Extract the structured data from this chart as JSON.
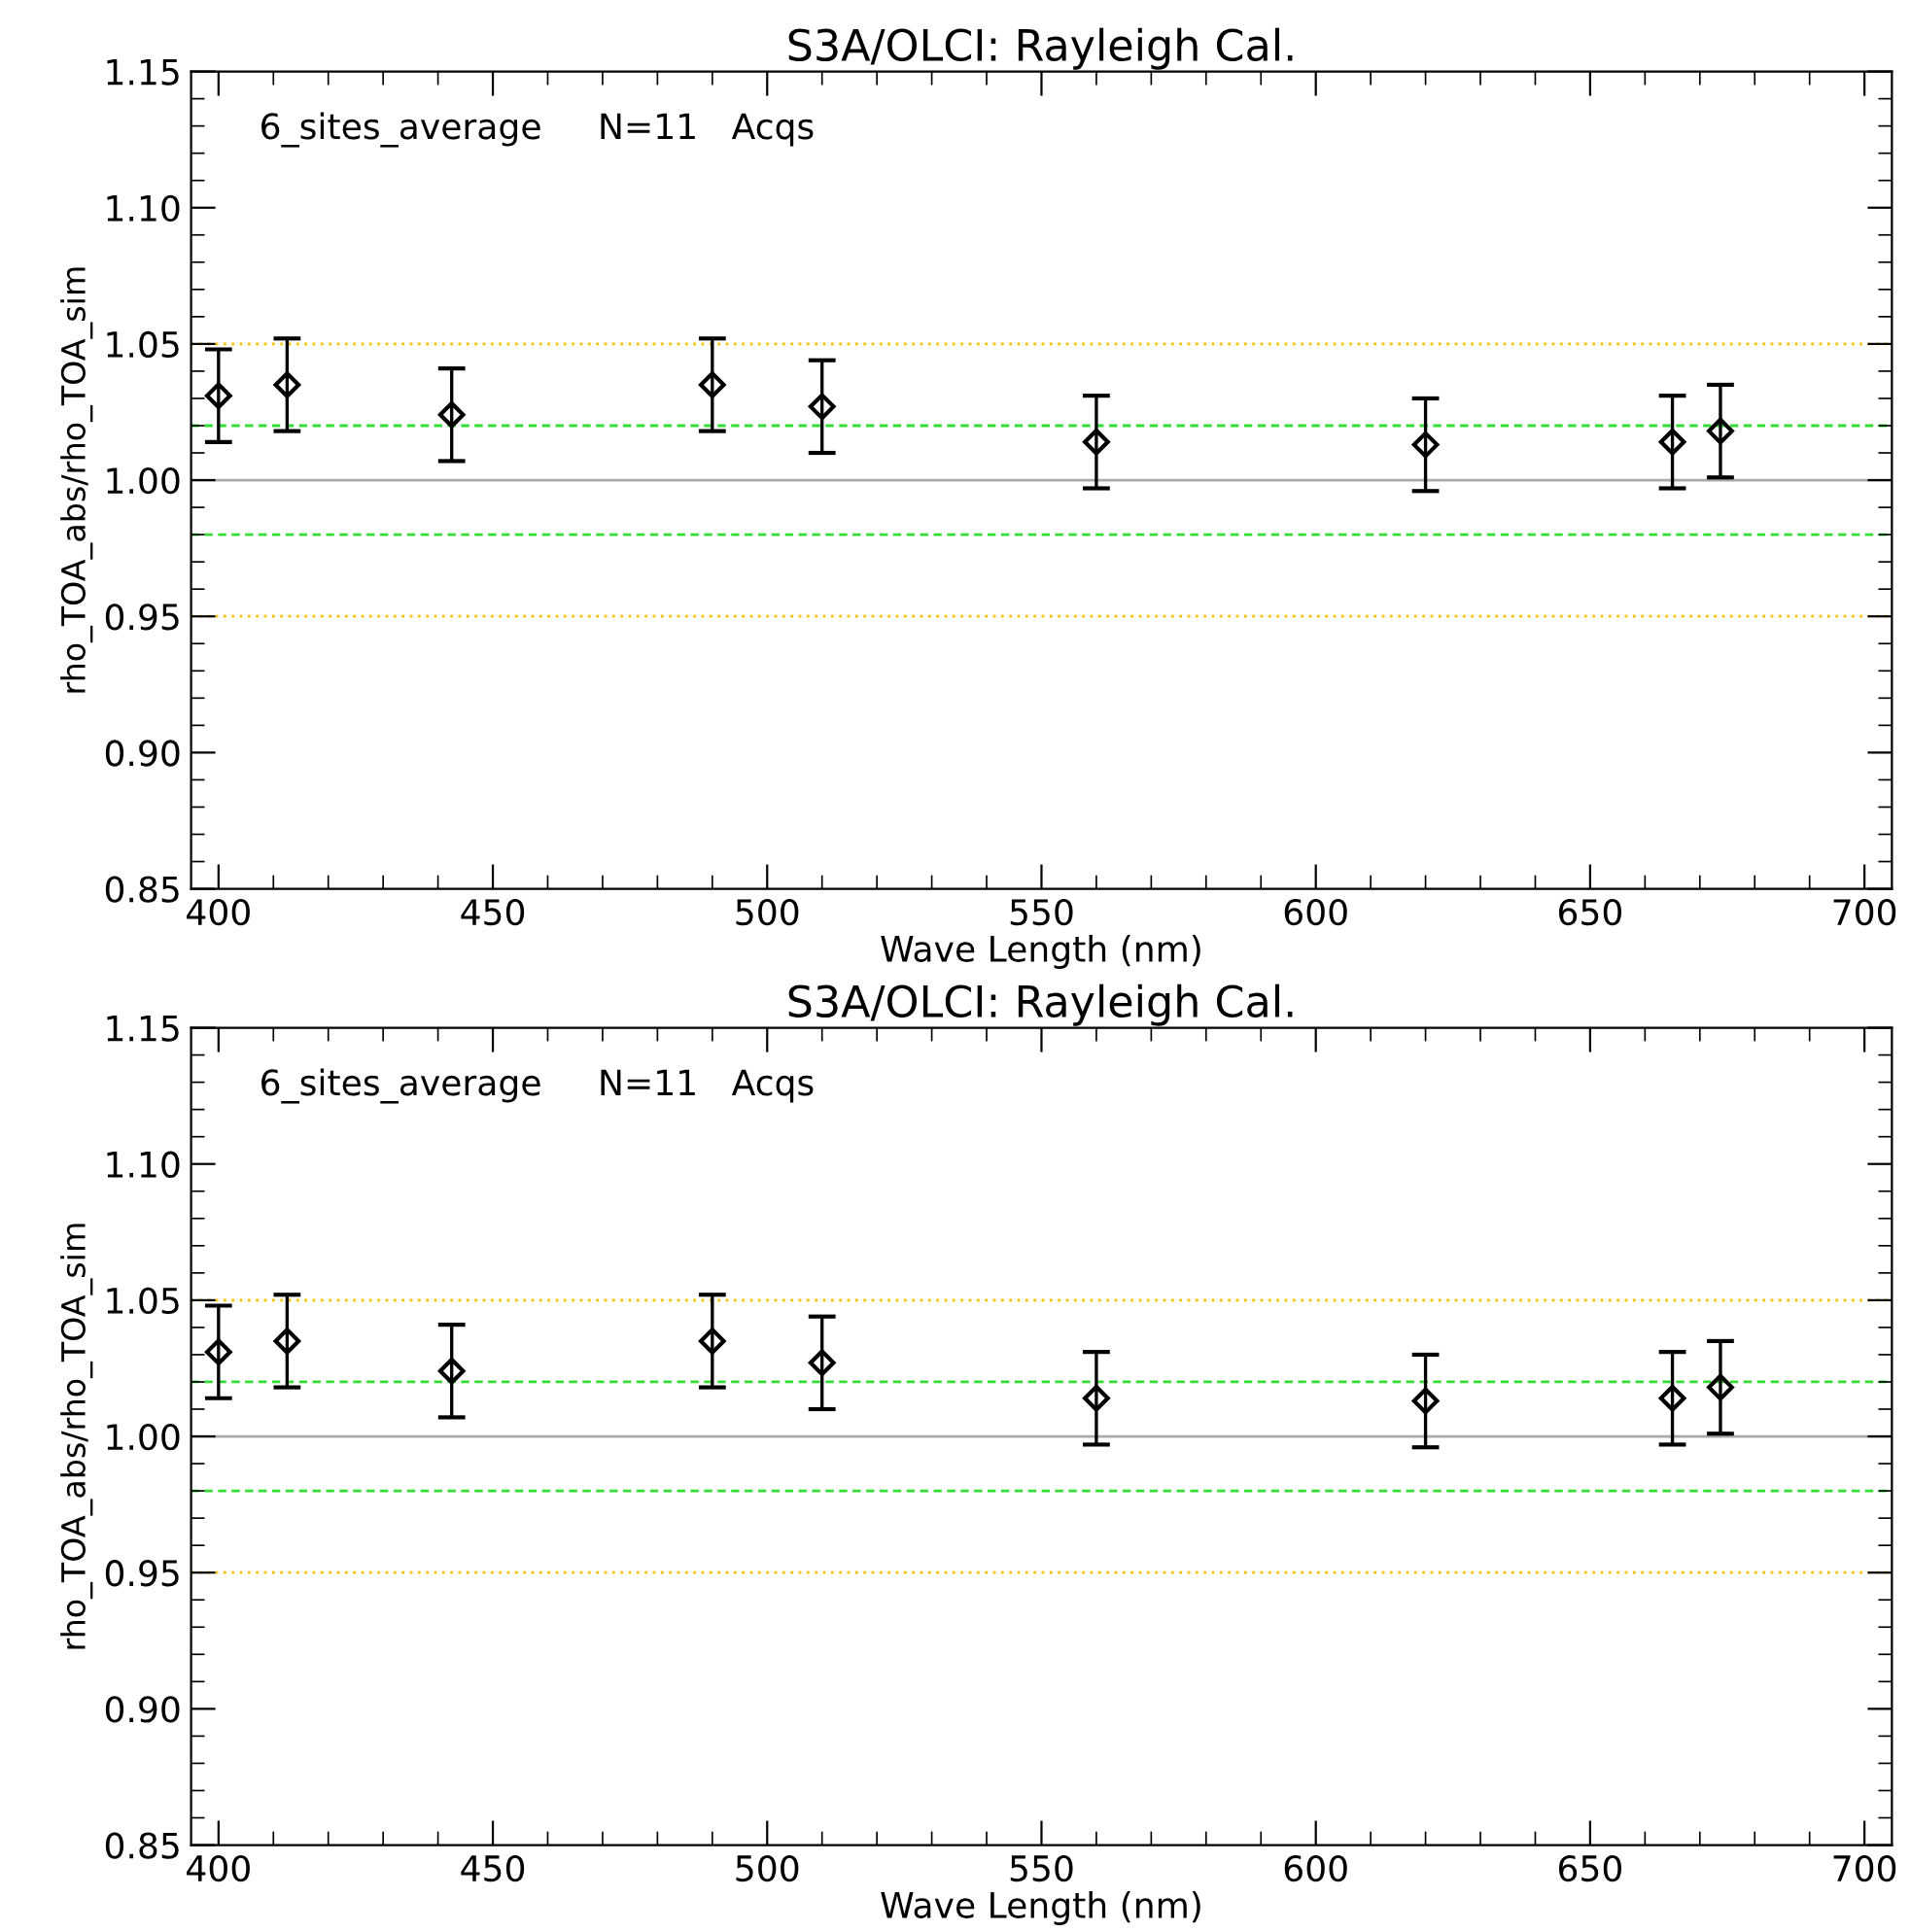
{
  "chart_data": [
    {
      "type": "scatter",
      "title": "S3A/OLCI: Rayleigh Cal.",
      "xlabel": "Wave Length (nm)",
      "ylabel": "rho_TOA_abs/rho_TOA_sim",
      "annotations": [
        "6_sites_average     N=11   Acqs"
      ],
      "x": [
        400,
        412.5,
        442.5,
        490,
        510,
        560,
        620,
        665,
        673.75
      ],
      "series": [
        {
          "color": "#000000",
          "values": [
            1.031,
            1.035,
            1.024,
            1.035,
            1.027,
            1.014,
            1.013,
            1.014,
            1.018
          ],
          "errors": [
            0.017,
            0.017,
            0.017,
            0.017,
            0.017,
            0.017,
            0.017,
            0.017,
            0.017
          ]
        }
      ],
      "xlim": [
        395,
        705
      ],
      "xticks": [
        400,
        450,
        500,
        550,
        600,
        650,
        700
      ],
      "ylim": [
        0.85,
        1.15
      ],
      "yticks": [
        0.85,
        {
          "value": 0.9,
          "label": "0.90"
        },
        0.95,
        {
          "value": 1.0,
          "label": "1.00"
        },
        1.05,
        {
          "value": 1.1,
          "label": "1.10"
        },
        1.15
      ],
      "ref_lines": [
        {
          "axis": "y",
          "value": 1.05,
          "color": "#ffc000",
          "line_style": "dotted"
        },
        {
          "axis": "y",
          "value": 1.02,
          "color": "#33dd33",
          "line_style": "dashed"
        },
        {
          "axis": "y",
          "value": 1.0,
          "color": "#aaaaaa",
          "line_style": "solid"
        },
        {
          "axis": "y",
          "value": 0.98,
          "color": "#33dd33",
          "line_style": "dashed"
        },
        {
          "axis": "y",
          "value": 0.95,
          "color": "#ffc000",
          "line_style": "dotted"
        }
      ],
      "marker": "diamond",
      "grid": false,
      "legend": false
    },
    {
      "type": "scatter",
      "title": "S3A/OLCI: Rayleigh Cal.",
      "xlabel": "Wave Length (nm)",
      "ylabel": "rho_TOA_abs/rho_TOA_sim",
      "annotations": [
        "6_sites_average     N=11   Acqs"
      ],
      "x": [
        400,
        412.5,
        442.5,
        490,
        510,
        560,
        620,
        665,
        673.75
      ],
      "series": [
        {
          "color": "#000000",
          "values": [
            1.031,
            1.035,
            1.024,
            1.035,
            1.027,
            1.014,
            1.013,
            1.014,
            1.018
          ],
          "errors": [
            0.017,
            0.017,
            0.017,
            0.017,
            0.017,
            0.017,
            0.017,
            0.017,
            0.017
          ]
        }
      ],
      "xlim": [
        395,
        705
      ],
      "xticks": [
        400,
        450,
        500,
        550,
        600,
        650,
        700
      ],
      "ylim": [
        0.85,
        1.15
      ],
      "yticks": [
        0.85,
        {
          "value": 0.9,
          "label": "0.90"
        },
        0.95,
        {
          "value": 1.0,
          "label": "1.00"
        },
        1.05,
        {
          "value": 1.1,
          "label": "1.10"
        },
        1.15
      ],
      "ref_lines": [
        {
          "axis": "y",
          "value": 1.05,
          "color": "#ffc000",
          "line_style": "dotted"
        },
        {
          "axis": "y",
          "value": 1.02,
          "color": "#33dd33",
          "line_style": "dashed"
        },
        {
          "axis": "y",
          "value": 1.0,
          "color": "#aaaaaa",
          "line_style": "solid"
        },
        {
          "axis": "y",
          "value": 0.98,
          "color": "#33dd33",
          "line_style": "dashed"
        },
        {
          "axis": "y",
          "value": 0.95,
          "color": "#ffc000",
          "line_style": "dotted"
        }
      ],
      "marker": "diamond",
      "grid": false,
      "legend": false
    }
  ]
}
